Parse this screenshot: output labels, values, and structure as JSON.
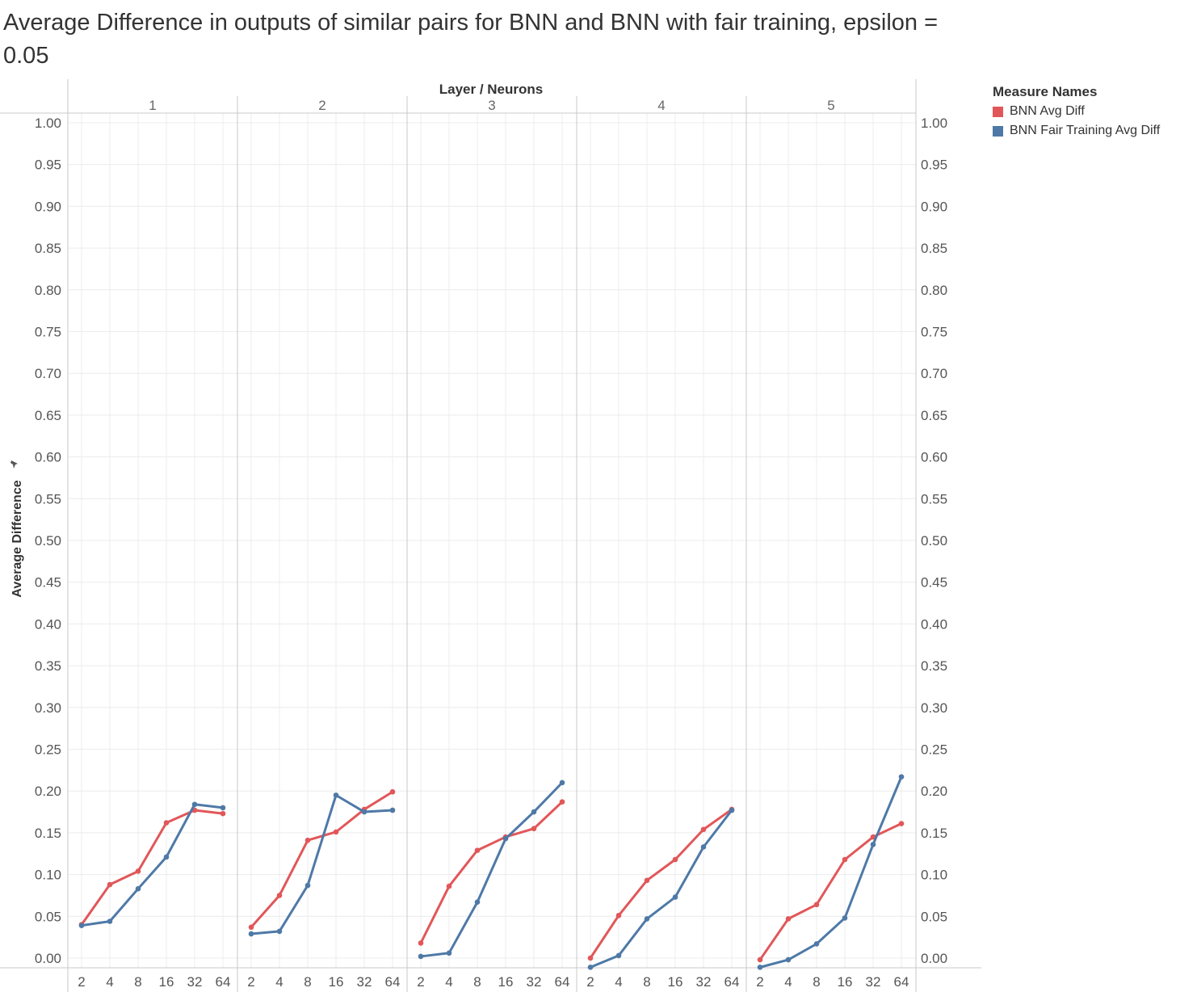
{
  "title": "Average Difference in outputs of similar pairs for BNN and BNN with fair training, epsilon = 0.05",
  "legend": {
    "title": "Measure Names",
    "items": [
      {
        "label": "BNN Avg Diff",
        "color": "#e15759"
      },
      {
        "label": "BNN Fair Training Avg Diff",
        "color": "#4e79a7"
      }
    ]
  },
  "chart_data": {
    "type": "line",
    "title": "Average Difference in outputs of similar pairs for BNN and BNN with fair training, epsilon = 0.05",
    "column_header": "Layer / Neurons",
    "ylabel": "Average Difference",
    "ylim": [
      -0.02,
      1.0
    ],
    "yticks": [
      "0.00",
      "0.05",
      "0.10",
      "0.15",
      "0.20",
      "0.25",
      "0.30",
      "0.35",
      "0.40",
      "0.45",
      "0.50",
      "0.55",
      "0.60",
      "0.65",
      "0.70",
      "0.75",
      "0.80",
      "0.85",
      "0.90",
      "0.95",
      "1.00"
    ],
    "y_axes": "left and right",
    "grid": true,
    "legend_position": "top-right",
    "x_categories": [
      "2",
      "4",
      "8",
      "16",
      "32",
      "64"
    ],
    "panels": [
      {
        "layer": "1",
        "series": [
          {
            "name": "BNN Avg Diff",
            "color": "#e15759",
            "values": [
              0.04,
              0.088,
              0.104,
              0.162,
              0.177,
              0.173
            ]
          },
          {
            "name": "BNN Fair Training Avg Diff",
            "color": "#4e79a7",
            "values": [
              0.039,
              0.044,
              0.083,
              0.121,
              0.184,
              0.18
            ]
          }
        ]
      },
      {
        "layer": "2",
        "series": [
          {
            "name": "BNN Avg Diff",
            "color": "#e15759",
            "values": [
              0.037,
              0.075,
              0.141,
              0.151,
              0.178,
              0.199
            ]
          },
          {
            "name": "BNN Fair Training Avg Diff",
            "color": "#4e79a7",
            "values": [
              0.029,
              0.032,
              0.087,
              0.195,
              0.175,
              0.177
            ]
          }
        ]
      },
      {
        "layer": "3",
        "series": [
          {
            "name": "BNN Avg Diff",
            "color": "#e15759",
            "values": [
              0.018,
              0.086,
              0.129,
              0.145,
              0.155,
              0.187
            ]
          },
          {
            "name": "BNN Fair Training Avg Diff",
            "color": "#4e79a7",
            "values": [
              0.002,
              0.006,
              0.067,
              0.143,
              0.175,
              0.21
            ]
          }
        ]
      },
      {
        "layer": "4",
        "series": [
          {
            "name": "BNN Avg Diff",
            "color": "#e15759",
            "values": [
              0.0,
              0.051,
              0.093,
              0.118,
              0.154,
              0.178
            ]
          },
          {
            "name": "BNN Fair Training Avg Diff",
            "color": "#4e79a7",
            "values": [
              -0.011,
              0.003,
              0.047,
              0.073,
              0.133,
              0.177
            ]
          }
        ]
      },
      {
        "layer": "5",
        "series": [
          {
            "name": "BNN Avg Diff",
            "color": "#e15759",
            "values": [
              -0.002,
              0.047,
              0.064,
              0.118,
              0.145,
              0.161
            ]
          },
          {
            "name": "BNN Fair Training Avg Diff",
            "color": "#4e79a7",
            "values": [
              -0.011,
              -0.002,
              0.017,
              0.048,
              0.136,
              0.217
            ]
          }
        ]
      }
    ]
  }
}
